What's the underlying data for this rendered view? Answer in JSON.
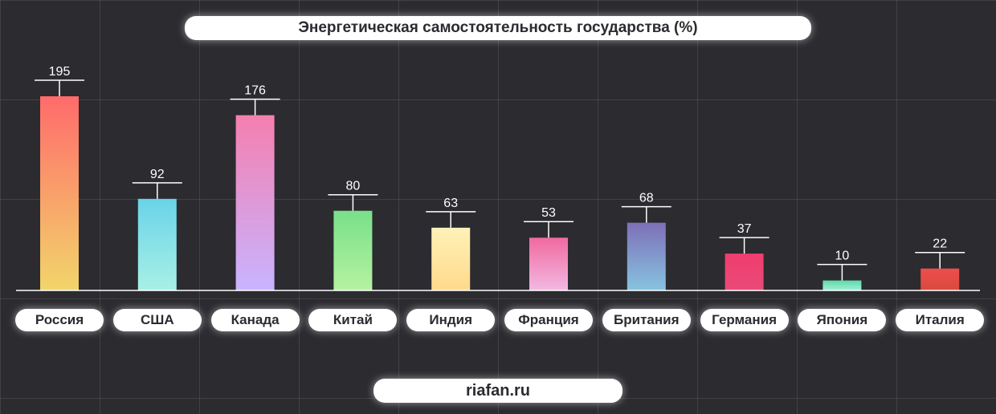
{
  "header": {
    "title": "Энергетическая самостоятельность государства (%)"
  },
  "footer": {
    "source": "riafan.ru"
  },
  "chart_data": {
    "type": "bar",
    "title": "Энергетическая самостоятельность государства (%)",
    "xlabel": "",
    "ylabel": "",
    "ylim": [
      0,
      220
    ],
    "grid": true,
    "categories": [
      "Россия",
      "США",
      "Канада",
      "Китай",
      "Индия",
      "Франция",
      "Британия",
      "Германия",
      "Япония",
      "Италия"
    ],
    "values": [
      195,
      92,
      176,
      80,
      63,
      53,
      68,
      37,
      10,
      22
    ],
    "gradients": [
      [
        "#ff6b6b",
        "#f2d56a"
      ],
      [
        "#6ad3e8",
        "#a8f0e6"
      ],
      [
        "#f57fb0",
        "#c8b4ff"
      ],
      [
        "#79e08a",
        "#b5f2a0"
      ],
      [
        "#fff2b8",
        "#ffd98c"
      ],
      [
        "#f06aa0",
        "#f3b8e2"
      ],
      [
        "#7e6fb8",
        "#86c3e0"
      ],
      [
        "#f03d6e",
        "#e94a78"
      ],
      [
        "#5fd9a8",
        "#a0f0d8"
      ],
      [
        "#ef4d4d",
        "#d84a3e"
      ]
    ]
  }
}
